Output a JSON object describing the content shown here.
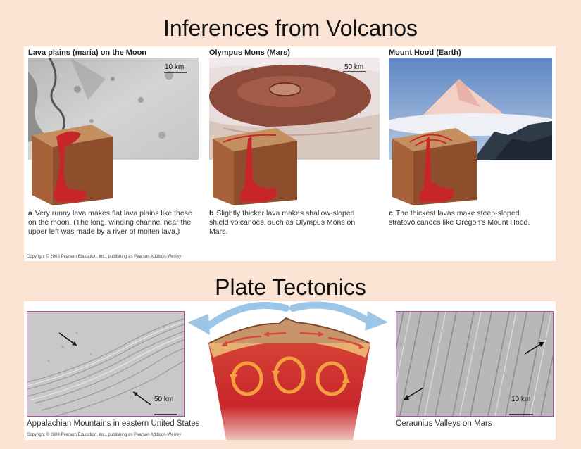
{
  "slide": {
    "title_top": "Inferences from Volcanos",
    "title_bottom": "Plate Tectonics"
  },
  "volcano_panel": {
    "items": [
      {
        "title": "Lava plains (maria) on the Moon",
        "scale": "10 km",
        "letter": "a",
        "caption": "Very runny lava makes flat lava plains like these on the moon. (The long, winding channel near the upper left was made by a river of molten lava.)"
      },
      {
        "title": "Olympus Mons (Mars)",
        "scale": "50 km",
        "letter": "b",
        "caption": "Slightly thicker lava makes shallow-sloped shield volcanoes, such as Olympus Mons on Mars."
      },
      {
        "title": "Mount Hood (Earth)",
        "scale": "",
        "letter": "c",
        "caption": "The thickest lavas make steep-sloped stratovolcanoes like Oregon's Mount Hood."
      }
    ],
    "copyright": "Copyright © 2008 Pearson Education, Inc., publishing as Pearson Addison-Wesley"
  },
  "tectonics_panel": {
    "left_caption": "Appalachian Mountains in eastern United States",
    "left_scale": "50 km",
    "right_caption": "Ceraunius Valleys on Mars",
    "right_scale": "10 km",
    "copyright": "Copyright © 2008 Pearson Education, Inc., publishing as Pearson Addison-Wesley"
  },
  "colors": {
    "background": "#fbe3d3",
    "magma": "#c8252b",
    "crust": "#a8623a",
    "arrow": "#9cc6e8"
  }
}
